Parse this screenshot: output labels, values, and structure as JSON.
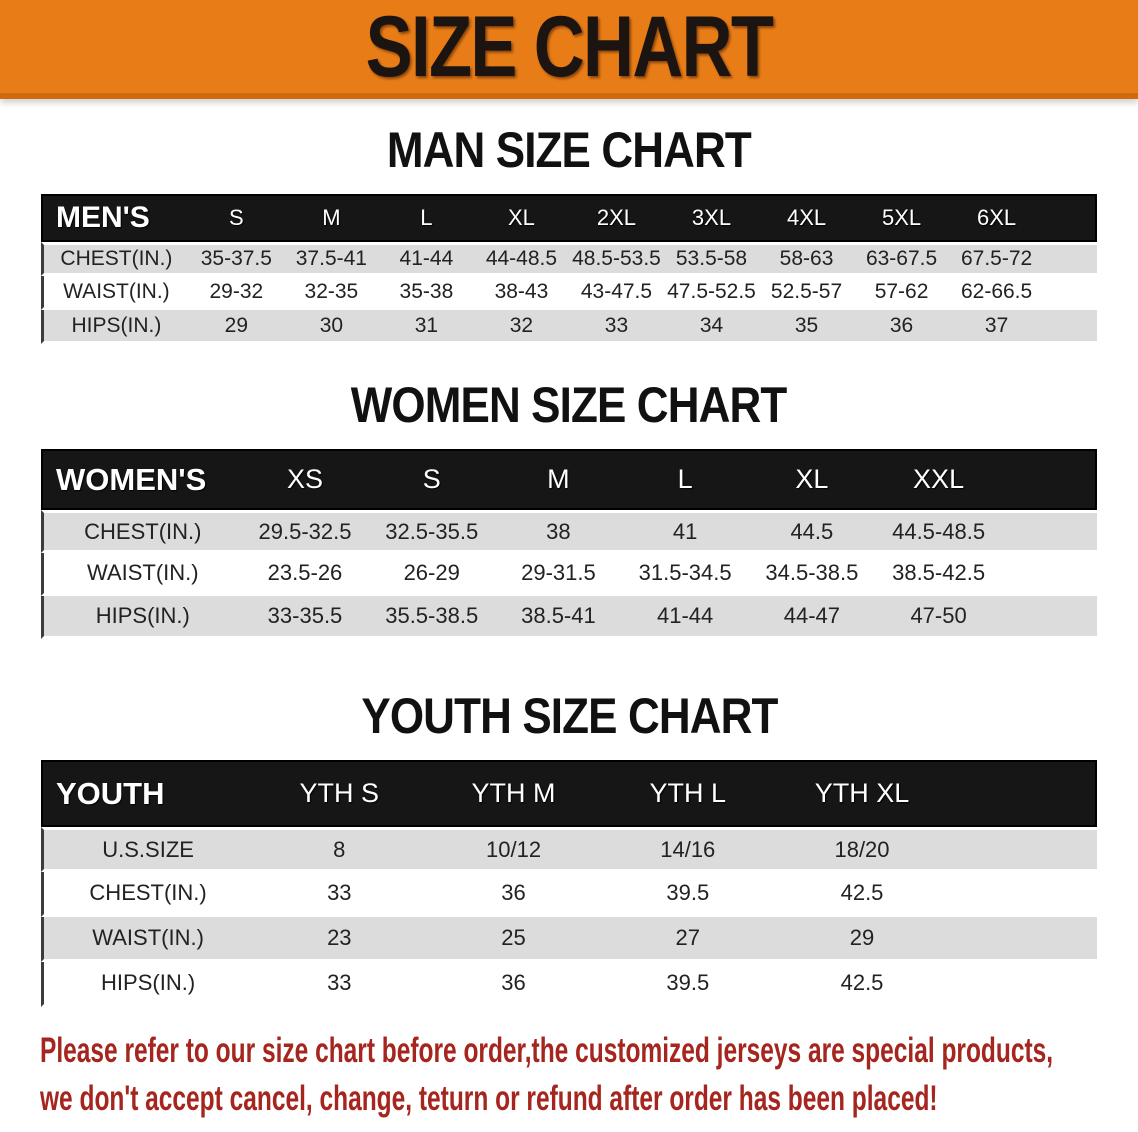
{
  "banner": {
    "title": "SIZE CHART"
  },
  "sections": [
    {
      "heading": "MAN SIZE CHART",
      "header": {
        "label": "MEN'S",
        "sizes": [
          "S",
          "M",
          "L",
          "XL",
          "2XL",
          "3XL",
          "4XL",
          "5XL",
          "6XL"
        ]
      },
      "rows": [
        {
          "label": "CHEST(IN.)",
          "values": [
            "35-37.5",
            "37.5-41",
            "41-44",
            "44-48.5",
            "48.5-53.5",
            "53.5-58",
            "58-63",
            "63-67.5",
            "67.5-72"
          ]
        },
        {
          "label": "WAIST(IN.)",
          "values": [
            "29-32",
            "32-35",
            "35-38",
            "38-43",
            "43-47.5",
            "47.5-52.5",
            "52.5-57",
            "57-62",
            "62-66.5"
          ]
        },
        {
          "label": "HIPS(IN.)",
          "values": [
            "29",
            "30",
            "31",
            "32",
            "33",
            "34",
            "35",
            "36",
            "37"
          ]
        }
      ]
    },
    {
      "heading": "WOMEN SIZE CHART",
      "header": {
        "label": "WOMEN'S",
        "sizes": [
          "XS",
          "S",
          "M",
          "L",
          "XL",
          "XXL"
        ]
      },
      "rows": [
        {
          "label": "CHEST(IN.)",
          "values": [
            "29.5-32.5",
            "32.5-35.5",
            "38",
            "41",
            "44.5",
            "44.5-48.5"
          ]
        },
        {
          "label": "WAIST(IN.)",
          "values": [
            "23.5-26",
            "26-29",
            "29-31.5",
            "31.5-34.5",
            "34.5-38.5",
            "38.5-42.5"
          ]
        },
        {
          "label": "HIPS(IN.)",
          "values": [
            "33-35.5",
            "35.5-38.5",
            "38.5-41",
            "41-44",
            "44-47",
            "47-50"
          ]
        }
      ]
    },
    {
      "heading": "YOUTH SIZE CHART",
      "header": {
        "label": "YOUTH",
        "sizes": [
          "YTH S",
          "YTH M",
          "YTH L",
          "YTH XL"
        ]
      },
      "rows": [
        {
          "label": "U.S.SIZE",
          "values": [
            "8",
            "10/12",
            "14/16",
            "18/20"
          ]
        },
        {
          "label": "CHEST(IN.)",
          "values": [
            "33",
            "36",
            "39.5",
            "42.5"
          ]
        },
        {
          "label": "WAIST(IN.)",
          "values": [
            "23",
            "25",
            "27",
            "29"
          ]
        },
        {
          "label": "HIPS(IN.)",
          "values": [
            "33",
            "36",
            "39.5",
            "42.5"
          ]
        }
      ]
    }
  ],
  "disclaimer": {
    "line1": "Please refer to our size chart before order,the customized jerseys are special products,",
    "line2": "we don't accept cancel, change, teturn or refund after order has been placed!"
  },
  "colors": {
    "banner_orange": "#e87d17",
    "banner_edge": "#cf6a0e",
    "header_black": "#161616",
    "row_gray": "#dcdcdc",
    "disclaimer_red": "#a5261e"
  }
}
